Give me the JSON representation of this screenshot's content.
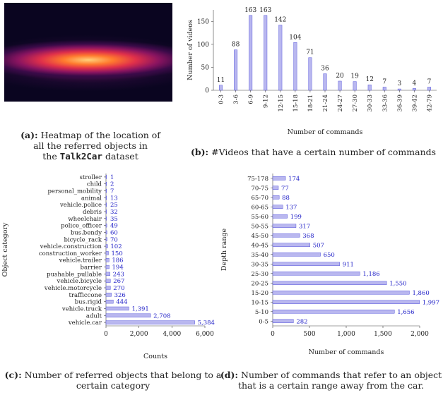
{
  "panel_a": {
    "caption_tag": "(a):",
    "caption_line1": "Heatmap of the location of",
    "caption_line2": "all the referred objects in",
    "caption_prefix": "the",
    "caption_dataset": "Talk2Car",
    "caption_suffix": "dataset"
  },
  "panel_b": {
    "caption_tag": "(b):",
    "caption_text": "#Videos that have a certain number of commands"
  },
  "panel_c": {
    "caption_tag": "(c):",
    "caption_line1": "Number of referred objects that belong to a",
    "caption_line2": "certain category"
  },
  "panel_d": {
    "caption_tag": "(d):",
    "caption_line1": "Number of commands that refer to an object",
    "caption_line2": "that is a certain range away from the car."
  },
  "colors": {
    "bar_fill": "#b9b7ef",
    "bar_stroke": "#3b3bd6",
    "label_blue": "#2323c8"
  },
  "chart_data": [
    {
      "type": "bar",
      "categories": [
        "0-3",
        "3-6",
        "6-9",
        "9-12",
        "12-15",
        "15-18",
        "18-21",
        "21-24",
        "24-27",
        "27-30",
        "30-33",
        "33-36",
        "36-39",
        "39-42",
        "42-79"
      ],
      "values": [
        11,
        88,
        163,
        163,
        142,
        104,
        71,
        36,
        20,
        19,
        12,
        7,
        3,
        4,
        7
      ],
      "xlabel": "Number of commands",
      "ylabel": "Number of videos",
      "yticks": [
        0,
        50,
        100,
        150
      ],
      "ylim": [
        0,
        175
      ],
      "grid": false
    },
    {
      "type": "bar",
      "orientation": "horizontal",
      "categories": [
        "stroller",
        "child",
        "personal_mobility",
        "animal",
        "vehicle.police",
        "debris",
        "wheelchair",
        "police_officer",
        "bus.bendy",
        "bicycle_rack",
        "vehicle.construction",
        "construction_worker",
        "vehicle.trailer",
        "barrier",
        "pushable_pullable",
        "vehicle.bicycle",
        "vehicle.motorcycle",
        "trafficcone",
        "bus.rigid",
        "vehicle.truck",
        "adult",
        "vehicle.car"
      ],
      "values": [
        1,
        2,
        7,
        13,
        25,
        32,
        35,
        49,
        60,
        70,
        102,
        150,
        186,
        194,
        243,
        267,
        270,
        326,
        444,
        1391,
        2708,
        5384
      ],
      "value_labels": [
        "1",
        "2",
        "7",
        "13",
        "25",
        "32",
        "35",
        "49",
        "60",
        "70",
        "102",
        "150",
        "186",
        "194",
        "243",
        "267",
        "270",
        "326",
        "444",
        "1,391",
        "2,708",
        "5,384"
      ],
      "xlabel": "Counts",
      "ylabel": "Object category",
      "xticks": [
        0,
        2000,
        4000,
        6000
      ],
      "xtick_labels": [
        "0",
        "2,000",
        "4,000",
        "6,000"
      ],
      "xlim": [
        0,
        6000
      ],
      "grid": false
    },
    {
      "type": "bar",
      "orientation": "horizontal",
      "categories": [
        "75-178",
        "70-75",
        "65-70",
        "60-65",
        "55-60",
        "50-55",
        "45-50",
        "40-45",
        "35-40",
        "30-35",
        "25-30",
        "20-25",
        "15-20",
        "10-15",
        "5-10",
        "0-5"
      ],
      "values": [
        174,
        77,
        88,
        137,
        199,
        317,
        368,
        507,
        650,
        911,
        1186,
        1550,
        1860,
        1997,
        1656,
        282
      ],
      "value_labels": [
        "174",
        "77",
        "88",
        "137",
        "199",
        "317",
        "368",
        "507",
        "650",
        "911",
        "1,186",
        "1,550",
        "1,860",
        "1,997",
        "1,656",
        "282"
      ],
      "xlabel": "Number of commands",
      "ylabel": "Depth range",
      "xticks": [
        0,
        500,
        1000,
        1500,
        2000
      ],
      "xtick_labels": [
        "0",
        "500",
        "1,000",
        "1,500",
        "2,000"
      ],
      "xlim": [
        0,
        2000
      ],
      "grid": false
    }
  ]
}
